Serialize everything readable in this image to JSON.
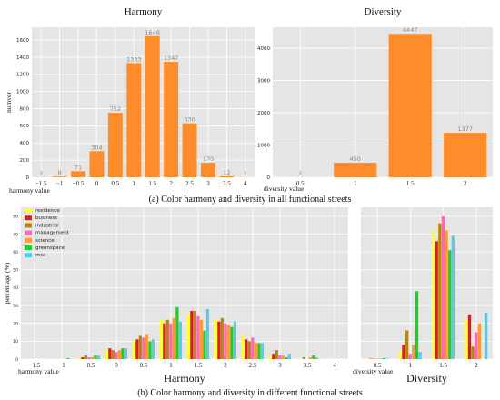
{
  "captions": {
    "a": "(a) Color harmony and diversity in all functional streets",
    "b": "(b) Color harmony and diversity in different functional streets"
  },
  "colors": {
    "background": "#ffffff",
    "plot_bg": "#e5e5e5",
    "grid": "#ffffff",
    "bar": "#ff8c2a",
    "label": "#888888",
    "residence": "#ffff33",
    "business": "#e41a1c",
    "industrial": "#b8860b",
    "management": "#ff69b4",
    "science": "#ff9933",
    "greenspace": "#22cc22",
    "mix": "#55ccee"
  },
  "chart_data": [
    {
      "type": "bar",
      "title": "Harmony",
      "xlabel": "harmony value",
      "ylabel": "numver",
      "categories": [
        "-1.5",
        "-1",
        "-0.5",
        "0",
        "0.5",
        "1",
        "1.5",
        "2",
        "2.5",
        "3",
        "3.5",
        "4"
      ],
      "values": [
        2,
        8,
        71,
        304,
        752,
        1333,
        1646,
        1347,
        630,
        170,
        12,
        1
      ],
      "data_labels": [
        "2",
        "8",
        "71",
        "304",
        "752",
        "1333",
        "1646",
        "1347",
        "630",
        "170",
        "12",
        "1"
      ],
      "yticks": [
        "0",
        "200",
        "400",
        "600",
        "800",
        "1000",
        "1200",
        "1400",
        "1600"
      ],
      "ylim": [
        0,
        1750
      ],
      "grid": true
    },
    {
      "type": "bar",
      "title": "Diversity",
      "xlabel": "diversity value",
      "ylabel": "",
      "categories": [
        "0.5",
        "1",
        "1.5",
        "2"
      ],
      "values": [
        2,
        450,
        4447,
        1377
      ],
      "data_labels": [
        "2",
        "450",
        "4447",
        "1377"
      ],
      "yticks": [
        "0",
        "1000",
        "2000",
        "3000",
        "4000"
      ],
      "ylim": [
        0,
        4650
      ],
      "grid": true
    },
    {
      "type": "bar",
      "title": "Harmony",
      "xlabel": "harmony value",
      "ylabel": "percentage (%)",
      "categories": [
        "-1.5",
        "-1",
        "-0.5",
        "0",
        "0.5",
        "1",
        "1.5",
        "2",
        "2.5",
        "3",
        "3.5",
        "4"
      ],
      "yticks": [
        "0",
        "10",
        "20",
        "30",
        "40",
        "50",
        "60",
        "70",
        "80"
      ],
      "ylim": [
        0,
        85
      ],
      "legend": "top-left",
      "grid": true,
      "series": [
        {
          "name": "residence",
          "values": [
            0,
            0,
            0.5,
            5,
            10,
            22,
            25,
            22,
            13,
            2,
            0,
            0
          ]
        },
        {
          "name": "business",
          "values": [
            0,
            0,
            1,
            6,
            11,
            20,
            27,
            21,
            11,
            3,
            0,
            0
          ]
        },
        {
          "name": "industrial",
          "values": [
            0,
            0,
            2,
            5,
            13,
            22,
            27,
            23,
            10,
            5,
            1,
            0
          ]
        },
        {
          "name": "management",
          "values": [
            0,
            0,
            1,
            4,
            12,
            20,
            24,
            20,
            12,
            2,
            0,
            0
          ]
        },
        {
          "name": "science",
          "values": [
            0,
            0,
            1,
            5,
            14,
            23,
            22,
            19,
            9,
            2,
            1,
            0
          ]
        },
        {
          "name": "greenspace",
          "values": [
            0,
            0.5,
            2,
            6,
            10,
            29,
            16,
            18,
            9,
            1,
            2,
            0
          ]
        },
        {
          "name": "mix",
          "values": [
            0,
            0,
            2,
            6,
            11,
            21,
            28,
            21,
            9,
            3,
            1,
            0
          ]
        }
      ]
    },
    {
      "type": "bar",
      "title": "Diversity",
      "xlabel": "diversity value",
      "ylabel": "",
      "categories": [
        "0.5",
        "1",
        "1.5",
        "2"
      ],
      "ylim": [
        0,
        85
      ],
      "grid": true,
      "series": [
        {
          "name": "residence",
          "values": [
            0.2,
            5,
            72,
            22
          ]
        },
        {
          "name": "business",
          "values": [
            0.2,
            8,
            66,
            25
          ]
        },
        {
          "name": "industrial",
          "values": [
            0.2,
            16,
            76,
            7
          ]
        },
        {
          "name": "management",
          "values": [
            0.2,
            3,
            80,
            15
          ]
        },
        {
          "name": "science",
          "values": [
            0.2,
            8,
            72,
            20
          ]
        },
        {
          "name": "greenspace",
          "values": [
            0.5,
            38,
            61,
            0
          ]
        },
        {
          "name": "mix",
          "values": [
            0.3,
            4,
            69,
            26
          ]
        }
      ]
    }
  ]
}
